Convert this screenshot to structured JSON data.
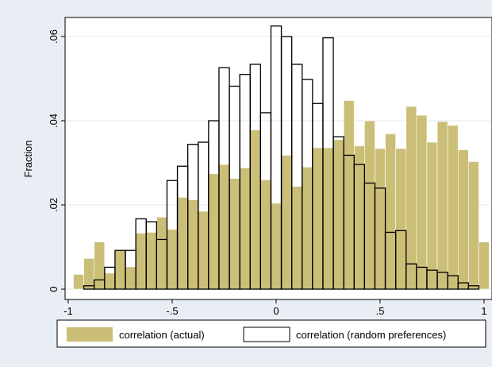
{
  "chart_data": {
    "type": "histogram",
    "ylabel": "Fraction",
    "xlabel": "",
    "xlim": [
      -1,
      1
    ],
    "ylim": [
      0,
      0.06
    ],
    "x_ticks": [
      "-1",
      "-.5",
      "0",
      ".5",
      "1"
    ],
    "y_ticks": [
      "0",
      ".02",
      ".04",
      ".06"
    ],
    "grid": true,
    "legend_position": "bottom",
    "bin_width": 0.05,
    "series": [
      {
        "name": "correlation (actual)",
        "color": "#cbbf78",
        "bins": [
          [
            -0.95,
            0.0035
          ],
          [
            -0.9,
            0.0073
          ],
          [
            -0.85,
            0.0112
          ],
          [
            -0.8,
            0.0038
          ],
          [
            -0.75,
            0.0092
          ],
          [
            -0.7,
            0.0053
          ],
          [
            -0.65,
            0.0133
          ],
          [
            -0.6,
            0.0135
          ],
          [
            -0.55,
            0.0171
          ],
          [
            -0.5,
            0.0142
          ],
          [
            -0.45,
            0.0218
          ],
          [
            -0.4,
            0.0212
          ],
          [
            -0.35,
            0.0185
          ],
          [
            -0.3,
            0.0274
          ],
          [
            -0.25,
            0.0296
          ],
          [
            -0.2,
            0.0263
          ],
          [
            -0.15,
            0.0288
          ],
          [
            -0.1,
            0.0378
          ],
          [
            -0.05,
            0.026
          ],
          [
            0.0,
            0.0204
          ],
          [
            0.05,
            0.0318
          ],
          [
            0.1,
            0.0244
          ],
          [
            0.15,
            0.029
          ],
          [
            0.2,
            0.0336
          ],
          [
            0.25,
            0.0336
          ],
          [
            0.3,
            0.0355
          ],
          [
            0.35,
            0.0448
          ],
          [
            0.4,
            0.034
          ],
          [
            0.45,
            0.04
          ],
          [
            0.5,
            0.0334
          ],
          [
            0.55,
            0.0369
          ],
          [
            0.6,
            0.0334
          ],
          [
            0.65,
            0.0434
          ],
          [
            0.7,
            0.0413
          ],
          [
            0.75,
            0.0349
          ],
          [
            0.8,
            0.0398
          ],
          [
            0.85,
            0.0389
          ],
          [
            0.9,
            0.0331
          ],
          [
            0.95,
            0.0303
          ],
          [
            1.0,
            0.0112
          ]
        ]
      },
      {
        "name": "correlation (random preferences)",
        "color": "#000000",
        "bins": [
          [
            -0.95,
            0.0
          ],
          [
            -0.9,
            0.0008
          ],
          [
            -0.85,
            0.0022
          ],
          [
            -0.8,
            0.0052
          ],
          [
            -0.75,
            0.0092
          ],
          [
            -0.7,
            0.0092
          ],
          [
            -0.65,
            0.0167
          ],
          [
            -0.6,
            0.016
          ],
          [
            -0.55,
            0.0118
          ],
          [
            -0.5,
            0.0258
          ],
          [
            -0.45,
            0.0292
          ],
          [
            -0.4,
            0.0344
          ],
          [
            -0.35,
            0.0349
          ],
          [
            -0.3,
            0.04
          ],
          [
            -0.25,
            0.0526
          ],
          [
            -0.2,
            0.0482
          ],
          [
            -0.15,
            0.051
          ],
          [
            -0.1,
            0.0534
          ],
          [
            -0.05,
            0.0419
          ],
          [
            0.0,
            0.0625
          ],
          [
            0.05,
            0.06
          ],
          [
            0.1,
            0.0534
          ],
          [
            0.15,
            0.0498
          ],
          [
            0.2,
            0.0441
          ],
          [
            0.25,
            0.0597
          ],
          [
            0.3,
            0.0362
          ],
          [
            0.35,
            0.0318
          ],
          [
            0.4,
            0.0296
          ],
          [
            0.45,
            0.0252
          ],
          [
            0.5,
            0.024
          ],
          [
            0.55,
            0.0135
          ],
          [
            0.6,
            0.0139
          ],
          [
            0.65,
            0.006
          ],
          [
            0.7,
            0.0052
          ],
          [
            0.75,
            0.0045
          ],
          [
            0.8,
            0.004
          ],
          [
            0.85,
            0.0032
          ],
          [
            0.9,
            0.0015
          ],
          [
            0.95,
            0.0008
          ]
        ]
      }
    ]
  }
}
